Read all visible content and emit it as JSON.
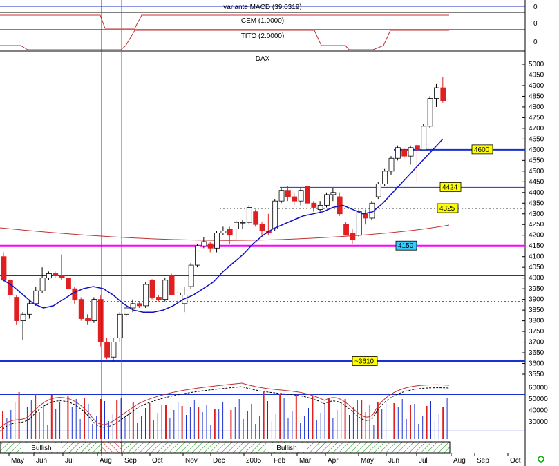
{
  "panels": {
    "macd": {
      "label": "variante MACD (39.0319)",
      "value": "0"
    },
    "cem": {
      "label": "CEM (1.0000)",
      "value": "0"
    },
    "tito": {
      "label": "TITO (2.0000)",
      "value": "0"
    }
  },
  "colors": {
    "up": "#ffffff",
    "down": "#e02020",
    "ma": "#1010c0",
    "ma_long": "#c03030",
    "support": "#1a2fd0",
    "magenta": "#ff00ff",
    "label_bg": "#ffff00",
    "label_blue_bg": "#33ccff",
    "vline_red": "#cc0000",
    "vline_green": "#00aa00",
    "hatch": "#008800"
  },
  "chart_data": {
    "type": "candlestick",
    "title": "DAX",
    "ylim": [
      3550,
      5050
    ],
    "yticks": [
      3550,
      3600,
      3650,
      3700,
      3750,
      3800,
      3850,
      3900,
      3950,
      4000,
      4050,
      4100,
      4150,
      4200,
      4250,
      4300,
      4350,
      4400,
      4450,
      4500,
      4550,
      4600,
      4650,
      4700,
      4750,
      4800,
      4850,
      4900,
      4950,
      5000
    ],
    "x_labels": [
      "May",
      "Jun",
      "Jul",
      "Aug",
      "Sep",
      "Oct",
      "Nov",
      "Dec",
      "2005",
      "Feb",
      "Mar",
      "Apr",
      "May",
      "Jun",
      "Jul",
      "Aug",
      "Sep",
      "Oct"
    ],
    "candles": [
      {
        "o": 4100,
        "h": 4120,
        "l": 3980,
        "c": 3990
      },
      {
        "o": 3990,
        "h": 4000,
        "l": 3900,
        "c": 3920
      },
      {
        "o": 3910,
        "h": 3920,
        "l": 3780,
        "c": 3800
      },
      {
        "o": 3800,
        "h": 3840,
        "l": 3710,
        "c": 3830
      },
      {
        "o": 3830,
        "h": 3900,
        "l": 3810,
        "c": 3880
      },
      {
        "o": 3880,
        "h": 3960,
        "l": 3870,
        "c": 3940
      },
      {
        "o": 3940,
        "h": 4050,
        "l": 3930,
        "c": 4000
      },
      {
        "o": 4000,
        "h": 4030,
        "l": 3990,
        "c": 4020
      },
      {
        "o": 4020,
        "h": 4030,
        "l": 4000,
        "c": 4010
      },
      {
        "o": 4010,
        "h": 4110,
        "l": 3990,
        "c": 4000
      },
      {
        "o": 4000,
        "h": 4010,
        "l": 3920,
        "c": 3950
      },
      {
        "o": 3950,
        "h": 3960,
        "l": 3880,
        "c": 3900
      },
      {
        "o": 3900,
        "h": 3910,
        "l": 3800,
        "c": 3810
      },
      {
        "o": 3810,
        "h": 3830,
        "l": 3780,
        "c": 3800
      },
      {
        "o": 3800,
        "h": 3910,
        "l": 3790,
        "c": 3900
      },
      {
        "o": 3900,
        "h": 3920,
        "l": 3680,
        "c": 3700
      },
      {
        "o": 3700,
        "h": 3720,
        "l": 3620,
        "c": 3630
      },
      {
        "o": 3630,
        "h": 3720,
        "l": 3610,
        "c": 3700
      },
      {
        "o": 3720,
        "h": 3840,
        "l": 3700,
        "c": 3830
      },
      {
        "o": 3830,
        "h": 3870,
        "l": 3820,
        "c": 3860
      },
      {
        "o": 3860,
        "h": 3900,
        "l": 3840,
        "c": 3880
      },
      {
        "o": 3880,
        "h": 3890,
        "l": 3860,
        "c": 3870
      },
      {
        "o": 3870,
        "h": 3980,
        "l": 3860,
        "c": 3970
      },
      {
        "o": 3990,
        "h": 3995,
        "l": 3900,
        "c": 3910
      },
      {
        "o": 3910,
        "h": 3920,
        "l": 3890,
        "c": 3900
      },
      {
        "o": 3900,
        "h": 4000,
        "l": 3890,
        "c": 3990
      },
      {
        "o": 4010,
        "h": 4020,
        "l": 3920,
        "c": 3920
      },
      {
        "o": 3920,
        "h": 3940,
        "l": 3880,
        "c": 3930
      },
      {
        "o": 3880,
        "h": 3960,
        "l": 3840,
        "c": 3920
      },
      {
        "o": 3960,
        "h": 4070,
        "l": 3950,
        "c": 4060
      },
      {
        "o": 4060,
        "h": 4160,
        "l": 4050,
        "c": 4150
      },
      {
        "o": 4150,
        "h": 4190,
        "l": 4140,
        "c": 4170
      },
      {
        "o": 4160,
        "h": 4170,
        "l": 4120,
        "c": 4140
      },
      {
        "o": 4140,
        "h": 4220,
        "l": 4120,
        "c": 4210
      },
      {
        "o": 4210,
        "h": 4240,
        "l": 4200,
        "c": 4220
      },
      {
        "o": 4230,
        "h": 4240,
        "l": 4160,
        "c": 4200
      },
      {
        "o": 4230,
        "h": 4270,
        "l": 4180,
        "c": 4260
      },
      {
        "o": 4260,
        "h": 4270,
        "l": 4230,
        "c": 4260
      },
      {
        "o": 4260,
        "h": 4340,
        "l": 4250,
        "c": 4330
      },
      {
        "o": 4310,
        "h": 4320,
        "l": 4240,
        "c": 4250
      },
      {
        "o": 4250,
        "h": 4260,
        "l": 4200,
        "c": 4220
      },
      {
        "o": 4220,
        "h": 4300,
        "l": 4200,
        "c": 4210
      },
      {
        "o": 4230,
        "h": 4370,
        "l": 4220,
        "c": 4360
      },
      {
        "o": 4360,
        "h": 4420,
        "l": 4350,
        "c": 4410
      },
      {
        "o": 4410,
        "h": 4430,
        "l": 4360,
        "c": 4380
      },
      {
        "o": 4380,
        "h": 4400,
        "l": 4340,
        "c": 4360
      },
      {
        "o": 4360,
        "h": 4420,
        "l": 4340,
        "c": 4410
      },
      {
        "o": 4430,
        "h": 4440,
        "l": 4330,
        "c": 4350
      },
      {
        "o": 4350,
        "h": 4360,
        "l": 4310,
        "c": 4330
      },
      {
        "o": 4320,
        "h": 4360,
        "l": 4310,
        "c": 4340
      },
      {
        "o": 4340,
        "h": 4400,
        "l": 4330,
        "c": 4390
      },
      {
        "o": 4390,
        "h": 4420,
        "l": 4360,
        "c": 4400
      },
      {
        "o": 4380,
        "h": 4400,
        "l": 4290,
        "c": 4300
      },
      {
        "o": 4250,
        "h": 4260,
        "l": 4200,
        "c": 4200
      },
      {
        "o": 4210,
        "h": 4230,
        "l": 4160,
        "c": 4180
      },
      {
        "o": 4200,
        "h": 4320,
        "l": 4190,
        "c": 4310
      },
      {
        "o": 4300,
        "h": 4320,
        "l": 4250,
        "c": 4280
      },
      {
        "o": 4280,
        "h": 4360,
        "l": 4270,
        "c": 4350
      },
      {
        "o": 4380,
        "h": 4450,
        "l": 4370,
        "c": 4440
      },
      {
        "o": 4440,
        "h": 4510,
        "l": 4430,
        "c": 4500
      },
      {
        "o": 4500,
        "h": 4570,
        "l": 4480,
        "c": 4560
      },
      {
        "o": 4560,
        "h": 4620,
        "l": 4550,
        "c": 4610
      },
      {
        "o": 4600,
        "h": 4610,
        "l": 4560,
        "c": 4570
      },
      {
        "o": 4570,
        "h": 4620,
        "l": 4530,
        "c": 4610
      },
      {
        "o": 4620,
        "h": 4630,
        "l": 4450,
        "c": 4600
      },
      {
        "o": 4600,
        "h": 4720,
        "l": 4600,
        "c": 4710
      },
      {
        "o": 4710,
        "h": 4850,
        "l": 4700,
        "c": 4840
      },
      {
        "o": 4840,
        "h": 4910,
        "l": 4800,
        "c": 4890
      },
      {
        "o": 4890,
        "h": 4940,
        "l": 4820,
        "c": 4830
      }
    ],
    "ma_short": [
      3990,
      3960,
      3920,
      3880,
      3860,
      3870,
      3900,
      3930,
      3950,
      3960,
      3950,
      3920,
      3880,
      3850,
      3840,
      3840,
      3850,
      3870,
      3900,
      3920,
      3950,
      3980,
      4030,
      4070,
      4110,
      4160,
      4200,
      4230,
      4250,
      4270,
      4290,
      4300,
      4310,
      4330,
      4340,
      4320,
      4300,
      4310,
      4350,
      4400,
      4450,
      4500,
      4550,
      4600,
      4650
    ],
    "horizontal_lines": [
      {
        "value": 4600,
        "label": "4600",
        "style": "solid-blue"
      },
      {
        "value": 4424,
        "label": "4424",
        "style": "solid-thin"
      },
      {
        "value": 4325,
        "label": "4325",
        "style": "dotted"
      },
      {
        "value": 4150,
        "label": "4150",
        "style": "magenta"
      },
      {
        "value": 4010,
        "label": "",
        "style": "solid-thin"
      },
      {
        "value": 3890,
        "label": "",
        "style": "dotted"
      },
      {
        "value": 3610,
        "label": "~3610",
        "style": "solid-blue-thick"
      }
    ],
    "volume": {
      "yticks": [
        30000,
        40000,
        50000,
        60000
      ],
      "ylim": [
        15000,
        70000
      ]
    },
    "bottom_bar": [
      "Bullish",
      "Bullish"
    ]
  }
}
